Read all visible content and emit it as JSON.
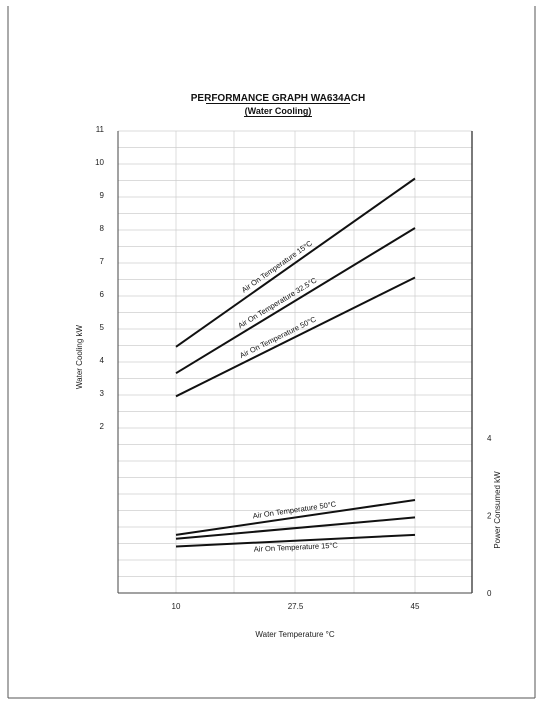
{
  "chart_data": {
    "type": "line",
    "title": "PERFORMANCE GRAPH WA634ACH",
    "subtitle": "(Water Cooling)",
    "xlabel": "Water Temperature °C",
    "ylabel": "Water Cooling kW",
    "y2label": "Power Consumed kW",
    "x_ticks": [
      "10",
      "27.5",
      "45"
    ],
    "xlim": [
      0,
      55
    ],
    "y_ticks": [
      "2",
      "3",
      "4",
      "5",
      "6",
      "7",
      "8",
      "9",
      "10",
      "11"
    ],
    "ylim": [
      2,
      11
    ],
    "y2_ticks": [
      "0",
      "2",
      "4"
    ],
    "y2lim": [
      0,
      4
    ],
    "grid": true,
    "series": [
      {
        "name": "Air On Temperature 15°C",
        "axis": "y",
        "x": [
          10,
          45
        ],
        "y": [
          4.4,
          9.5
        ]
      },
      {
        "name": "Air On Temperature 32.5°C",
        "axis": "y",
        "x": [
          10,
          45
        ],
        "y": [
          3.6,
          8.0
        ]
      },
      {
        "name": "Air On Temperature 50°C",
        "axis": "y",
        "x": [
          10,
          45
        ],
        "y": [
          2.9,
          6.5
        ]
      },
      {
        "name": "Air On Temperature 50°C",
        "axis": "y2",
        "x": [
          10,
          45
        ],
        "y": [
          1.5,
          2.4
        ]
      },
      {
        "name": "",
        "axis": "y2",
        "x": [
          10,
          45
        ],
        "y": [
          1.4,
          1.95
        ]
      },
      {
        "name": "Air On Temperature 15°C",
        "axis": "y2",
        "x": [
          10,
          45
        ],
        "y": [
          1.2,
          1.5
        ]
      }
    ]
  }
}
